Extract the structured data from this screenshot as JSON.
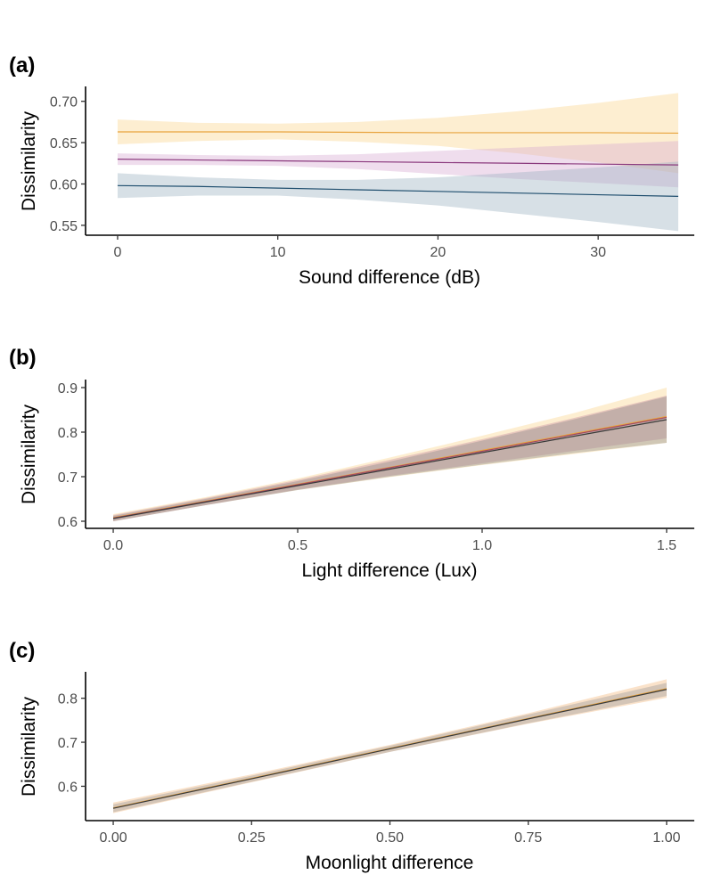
{
  "chart_data": [
    {
      "type": "line",
      "panel_label": "(a)",
      "xlabel": "Sound difference (dB)",
      "ylabel": "Dissimilarity",
      "xlim": [
        -2,
        36
      ],
      "ylim": [
        0.538,
        0.718
      ],
      "x_ticks": [
        0,
        10,
        20,
        30
      ],
      "x_tick_labels": [
        "0",
        "10",
        "20",
        "30"
      ],
      "y_ticks": [
        0.55,
        0.6,
        0.65,
        0.7
      ],
      "y_tick_labels": [
        "0.55",
        "0.60",
        "0.65",
        "0.70"
      ],
      "grid": false,
      "legend": "none",
      "series": [
        {
          "color": "#E8A33D",
          "band_color": "#FBD48C",
          "x": [
            0,
            5,
            10,
            15,
            20,
            25,
            30,
            35
          ],
          "y": [
            0.663,
            0.663,
            0.663,
            0.6625,
            0.662,
            0.662,
            0.662,
            0.6615
          ],
          "lower": [
            0.648,
            0.652,
            0.654,
            0.651,
            0.646,
            0.637,
            0.626,
            0.613
          ],
          "upper": [
            0.678,
            0.674,
            0.673,
            0.675,
            0.68,
            0.688,
            0.698,
            0.71
          ]
        },
        {
          "color": "#8B3A7E",
          "band_color": "#D7A9D2",
          "x": [
            0,
            5,
            10,
            15,
            20,
            25,
            30,
            35
          ],
          "y": [
            0.63,
            0.629,
            0.628,
            0.627,
            0.626,
            0.625,
            0.624,
            0.623
          ],
          "lower": [
            0.623,
            0.623,
            0.622,
            0.618,
            0.612,
            0.606,
            0.601,
            0.596
          ],
          "upper": [
            0.637,
            0.635,
            0.634,
            0.636,
            0.64,
            0.644,
            0.648,
            0.652
          ]
        },
        {
          "color": "#1F4E6E",
          "band_color": "#9CB2C1",
          "x": [
            0,
            5,
            10,
            15,
            20,
            25,
            30,
            35
          ],
          "y": [
            0.598,
            0.597,
            0.595,
            0.593,
            0.591,
            0.589,
            0.587,
            0.585
          ],
          "lower": [
            0.583,
            0.586,
            0.586,
            0.581,
            0.574,
            0.564,
            0.554,
            0.543
          ],
          "upper": [
            0.613,
            0.608,
            0.605,
            0.605,
            0.608,
            0.614,
            0.62,
            0.627
          ]
        }
      ]
    },
    {
      "type": "line",
      "panel_label": "(b)",
      "xlabel": "Light difference (Lux)",
      "ylabel": "Dissimilarity",
      "xlim": [
        -0.075,
        1.575
      ],
      "ylim": [
        0.584,
        0.918
      ],
      "x_ticks": [
        0.0,
        0.5,
        1.0,
        1.5
      ],
      "x_tick_labels": [
        "0.0",
        "0.5",
        "1.0",
        "1.5"
      ],
      "y_ticks": [
        0.6,
        0.7,
        0.8,
        0.9
      ],
      "y_tick_labels": [
        "0.6",
        "0.7",
        "0.8",
        "0.9"
      ],
      "grid": false,
      "legend": "none",
      "series": [
        {
          "color": "#E8A33D",
          "band_color": "#FBD48C",
          "x": [
            0,
            0.25,
            0.5,
            0.75,
            1.0,
            1.25,
            1.5
          ],
          "y": [
            0.608,
            0.645,
            0.683,
            0.721,
            0.759,
            0.797,
            0.835
          ],
          "lower": [
            0.6,
            0.636,
            0.67,
            0.699,
            0.726,
            0.751,
            0.776
          ],
          "upper": [
            0.616,
            0.654,
            0.696,
            0.743,
            0.792,
            0.843,
            0.9
          ]
        },
        {
          "color": "#A34A62",
          "band_color": "#C98BA0",
          "x": [
            0,
            0.25,
            0.5,
            0.75,
            1.0,
            1.25,
            1.5
          ],
          "y": [
            0.607,
            0.644,
            0.682,
            0.72,
            0.757,
            0.795,
            0.833
          ],
          "lower": [
            0.6,
            0.636,
            0.671,
            0.702,
            0.73,
            0.758,
            0.786
          ],
          "upper": [
            0.614,
            0.652,
            0.693,
            0.738,
            0.784,
            0.832,
            0.882
          ]
        },
        {
          "color": "#3A3A3A",
          "band_color": "#8C8C8C",
          "x": [
            0,
            0.25,
            0.5,
            0.75,
            1.0,
            1.25,
            1.5
          ],
          "y": [
            0.606,
            0.643,
            0.68,
            0.717,
            0.754,
            0.791,
            0.828
          ],
          "lower": [
            0.6,
            0.636,
            0.67,
            0.7,
            0.727,
            0.753,
            0.776
          ],
          "upper": [
            0.612,
            0.65,
            0.69,
            0.734,
            0.781,
            0.829,
            0.88
          ]
        }
      ]
    },
    {
      "type": "line",
      "panel_label": "(c)",
      "xlabel": "Moonlight difference",
      "ylabel": "Dissimilarity",
      "xlim": [
        -0.05,
        1.05
      ],
      "ylim": [
        0.522,
        0.86
      ],
      "x_ticks": [
        0.0,
        0.25,
        0.5,
        0.75,
        1.0
      ],
      "x_tick_labels": [
        "0.00",
        "0.25",
        "0.50",
        "0.75",
        "1.00"
      ],
      "y_ticks": [
        0.6,
        0.7,
        0.8
      ],
      "y_tick_labels": [
        "0.6",
        "0.7",
        "0.8"
      ],
      "grid": false,
      "legend": "none",
      "series": [
        {
          "color": "#E8A33D",
          "band_color": "#F2B77A",
          "x": [
            0,
            0.25,
            0.5,
            0.75,
            1.0
          ],
          "y": [
            0.551,
            0.618,
            0.686,
            0.754,
            0.822
          ],
          "lower": [
            0.539,
            0.609,
            0.678,
            0.742,
            0.801
          ],
          "upper": [
            0.563,
            0.627,
            0.694,
            0.766,
            0.843
          ]
        },
        {
          "color": "#3A3A3A",
          "band_color": "#9A9A9A",
          "x": [
            0,
            0.25,
            0.5,
            0.75,
            1.0
          ],
          "y": [
            0.55,
            0.617,
            0.685,
            0.753,
            0.82
          ],
          "lower": [
            0.541,
            0.61,
            0.678,
            0.743,
            0.805
          ],
          "upper": [
            0.559,
            0.624,
            0.692,
            0.763,
            0.835
          ]
        }
      ]
    }
  ]
}
